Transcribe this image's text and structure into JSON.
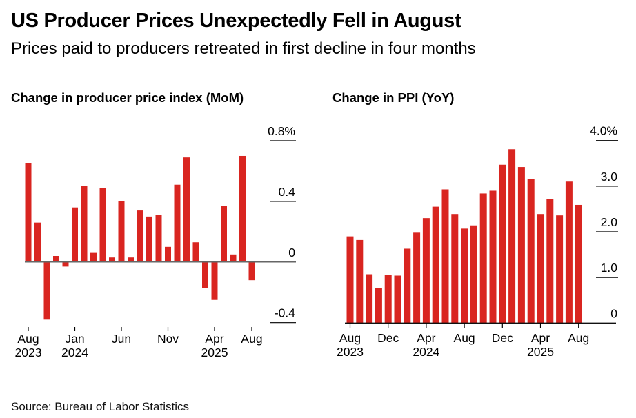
{
  "header": {
    "title": "US Producer Prices Unexpectedly Fell in August",
    "subtitle": "Prices paid to producers retreated in first decline in four months"
  },
  "footer": {
    "source": "Source: Bureau of Labor Statistics"
  },
  "colors": {
    "bar": "#d92520",
    "axis": "#555555",
    "gridline": "#000000"
  },
  "chart_data": [
    {
      "type": "bar",
      "title": "Change in producer price index (MoM)",
      "xlabel": "",
      "ylabel": "",
      "unit": "%",
      "ylim": [
        -0.4,
        0.8
      ],
      "yticks": [
        {
          "value": 0.8,
          "label": "0.8%"
        },
        {
          "value": 0.4,
          "label": "0.4"
        },
        {
          "value": 0,
          "label": "0"
        },
        {
          "value": -0.4,
          "label": "-0.4"
        }
      ],
      "categories": [
        "Aug 2023",
        "Sep 2023",
        "Oct 2023",
        "Nov 2023",
        "Dec 2023",
        "Jan 2024",
        "Feb 2024",
        "Mar 2024",
        "Apr 2024",
        "May 2024",
        "Jun 2024",
        "Jul 2024",
        "Aug 2024",
        "Sep 2024",
        "Oct 2024",
        "Nov 2024",
        "Dec 2024",
        "Jan 2025",
        "Feb 2025",
        "Mar 2025",
        "Apr 2025",
        "May 2025",
        "Jun 2025",
        "Jul 2025",
        "Aug 2025"
      ],
      "values": [
        0.65,
        0.26,
        -0.38,
        0.04,
        -0.03,
        0.36,
        0.5,
        0.06,
        0.49,
        0.03,
        0.4,
        0.03,
        0.34,
        0.3,
        0.31,
        0.1,
        0.51,
        0.69,
        0.13,
        -0.17,
        -0.25,
        0.37,
        0.05,
        0.7,
        -0.12
      ],
      "xticks": [
        {
          "index": 0,
          "line1": "Aug",
          "line2": "2023"
        },
        {
          "index": 5,
          "line1": "Jan",
          "line2": "2024"
        },
        {
          "index": 10,
          "line1": "Jun",
          "line2": ""
        },
        {
          "index": 15,
          "line1": "Nov",
          "line2": ""
        },
        {
          "index": 20,
          "line1": "Apr",
          "line2": "2025"
        },
        {
          "index": 24,
          "line1": "Aug",
          "line2": ""
        }
      ],
      "grid": "y-ticks-right"
    },
    {
      "type": "bar",
      "title": "Change in PPI (YoY)",
      "xlabel": "",
      "ylabel": "",
      "unit": "%",
      "ylim": [
        0,
        4.0
      ],
      "yticks": [
        {
          "value": 4.0,
          "label": "4.0%"
        },
        {
          "value": 3.0,
          "label": "3.0"
        },
        {
          "value": 2.0,
          "label": "2.0"
        },
        {
          "value": 1.0,
          "label": "1.0"
        },
        {
          "value": 0,
          "label": "0"
        }
      ],
      "categories": [
        "Aug 2023",
        "Sep 2023",
        "Oct 2023",
        "Nov 2023",
        "Dec 2023",
        "Jan 2024",
        "Feb 2024",
        "Mar 2024",
        "Apr 2024",
        "May 2024",
        "Jun 2024",
        "Jul 2024",
        "Aug 2024",
        "Sep 2024",
        "Oct 2024",
        "Nov 2024",
        "Dec 2024",
        "Jan 2025",
        "Feb 2025",
        "Mar 2025",
        "Apr 2025",
        "May 2025",
        "Jun 2025",
        "Jul 2025",
        "Aug 2025"
      ],
      "values": [
        1.9,
        1.82,
        1.07,
        0.77,
        1.06,
        1.04,
        1.63,
        1.98,
        2.3,
        2.55,
        2.93,
        2.39,
        2.07,
        2.14,
        2.84,
        2.9,
        3.47,
        3.81,
        3.42,
        3.15,
        2.39,
        2.72,
        2.36,
        3.1,
        2.59
      ],
      "xticks": [
        {
          "index": 0,
          "line1": "Aug",
          "line2": "2023"
        },
        {
          "index": 4,
          "line1": "Dec",
          "line2": ""
        },
        {
          "index": 8,
          "line1": "Apr",
          "line2": "2024"
        },
        {
          "index": 12,
          "line1": "Aug",
          "line2": ""
        },
        {
          "index": 16,
          "line1": "Dec",
          "line2": ""
        },
        {
          "index": 20,
          "line1": "Apr",
          "line2": "2025"
        },
        {
          "index": 24,
          "line1": "Aug",
          "line2": ""
        }
      ],
      "grid": "y-ticks-right"
    }
  ]
}
